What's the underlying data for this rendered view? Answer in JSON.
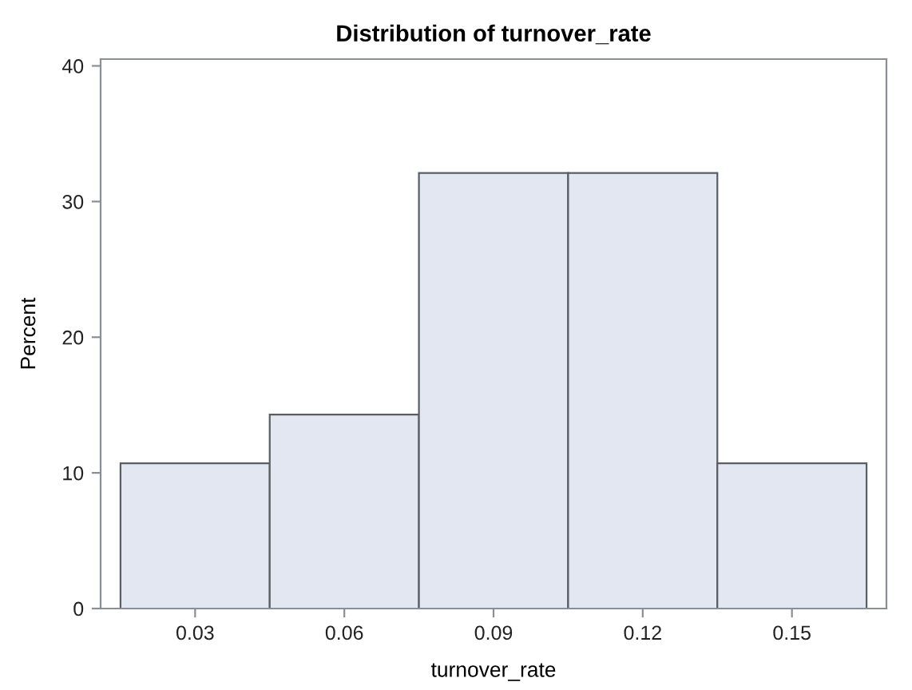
{
  "chart_data": {
    "type": "histogram",
    "title": "Distribution of turnover_rate",
    "xlabel": "turnover_rate",
    "ylabel": "Percent",
    "bins": [
      0.015,
      0.045,
      0.075,
      0.105,
      0.135,
      0.165
    ],
    "values": [
      10.7,
      14.3,
      32.1,
      32.1,
      10.7
    ],
    "color": "#e3e7f1",
    "xlim": [
      0.011,
      0.169
    ],
    "xticks": [
      0.03,
      0.06,
      0.09,
      0.12,
      0.15
    ],
    "ylim": [
      0,
      40.5
    ],
    "yticks": [
      0,
      10,
      20,
      30,
      40
    ],
    "grid": false
  }
}
